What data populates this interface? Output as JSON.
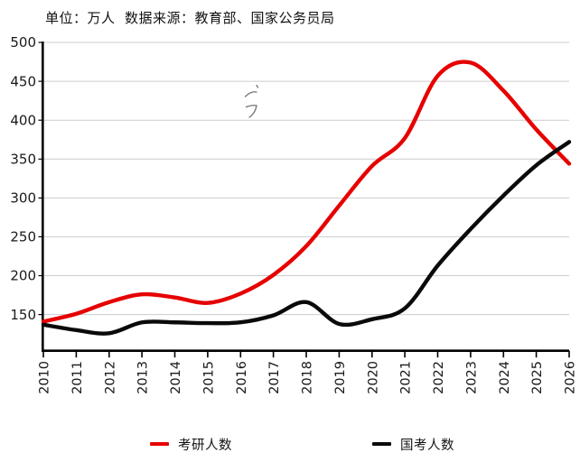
{
  "header": {
    "title": "单位：万人  数据来源：教育部、国家公务员局"
  },
  "chart_data": {
    "type": "line",
    "title": "单位：万人  数据来源：教育部、国家公务员局",
    "xlabel": "",
    "ylabel": "",
    "x": [
      "2010",
      "2011",
      "2012",
      "2013",
      "2014",
      "2015",
      "2016",
      "2017",
      "2018",
      "2019",
      "2020",
      "2021",
      "2022",
      "2023",
      "2024",
      "2025",
      "2026"
    ],
    "series": [
      {
        "name": "考研人数",
        "color": "#e60000",
        "values": [
          141,
          151,
          166,
          176,
          172,
          165,
          177,
          201,
          238,
          290,
          341,
          377,
          457,
          474,
          438,
          388,
          344
        ]
      },
      {
        "name": "国考人数",
        "color": "#0a0a0a",
        "values": [
          137,
          130,
          126,
          140,
          140,
          139,
          140,
          149,
          166,
          138,
          144,
          158,
          213,
          260,
          303,
          342,
          372
        ]
      }
    ],
    "ylim": [
      103.5,
      500
    ],
    "yticks": [
      150,
      200,
      250,
      300,
      350,
      400,
      450,
      500
    ],
    "grid": true,
    "grid_color": "#cccccc",
    "axis_color": "#000000",
    "tick_label_color": "#1a1a1a",
    "x_tick_rotation": 90,
    "legend_position": "bottom"
  },
  "legend": {
    "items": [
      {
        "label": "考研人数",
        "color": "#e60000"
      },
      {
        "label": "国考人数",
        "color": "#0a0a0a"
      }
    ]
  }
}
